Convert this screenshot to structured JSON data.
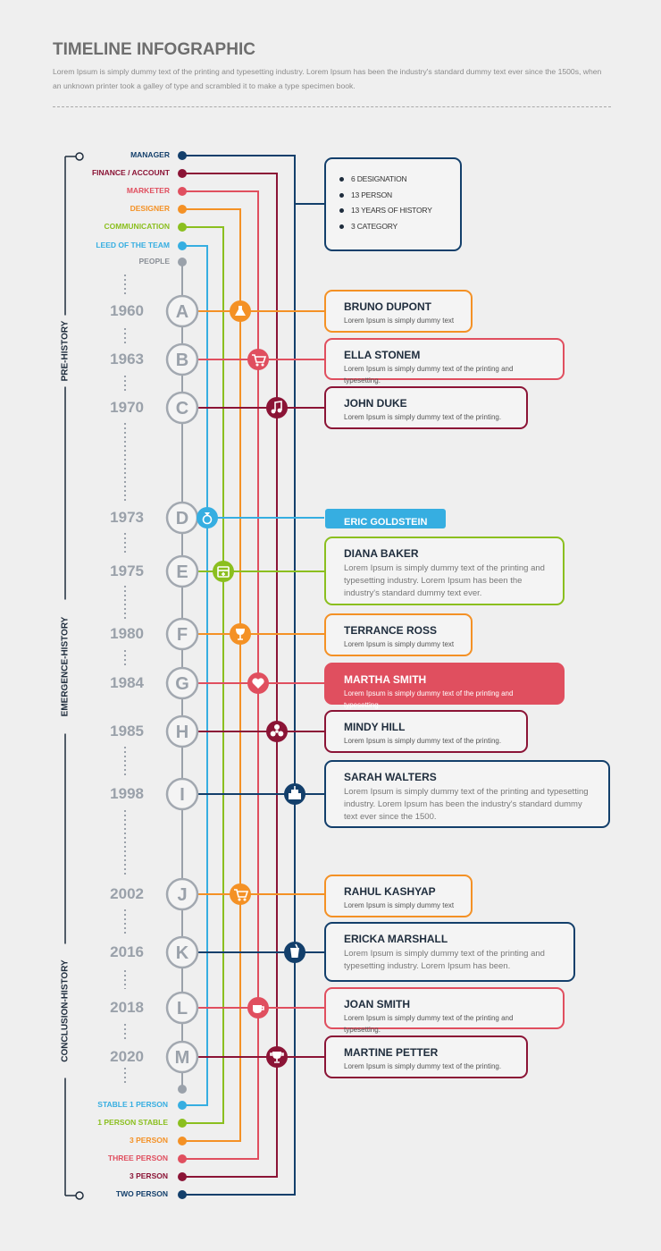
{
  "header": {
    "title": "TIMELINE INFOGRAPHIC",
    "description": "Lorem Ipsum is simply dummy text of the printing and typesetting industry. Lorem Ipsum has been the industry's standard dummy text ever since the 1500s, when an unknown printer took a galley of type and scrambled it to make a type specimen book."
  },
  "colors": {
    "navy": "#133f6b",
    "maroon": "#8b1436",
    "red": "#e04f5f",
    "orange": "#f49125",
    "green": "#8bbf1f",
    "blue": "#36aee1",
    "gray": "#9aa1aa"
  },
  "top_labels": [
    "MANAGER",
    "FINANCE / ACCOUNT",
    "MARKETER",
    "DESIGNER",
    "COMMUNICATION",
    "LEED OF THE TEAM",
    "PEOPLE"
  ],
  "bottom_labels": [
    "STABLE 1 PERSON",
    "1 PERSON STABLE",
    "3 PERSON",
    "THREE PERSON",
    "3 PERSON",
    "TWO PERSON"
  ],
  "summary": [
    "6 DESIGNATION",
    "13 PERSON",
    "13 YEARS OF HISTORY",
    "3 CATEGORY"
  ],
  "eras": [
    "PRE-HISTORY",
    "EMERGENCE-HISTORY",
    "CONCLUSION-HISTORY"
  ],
  "events": [
    {
      "letter": "A",
      "year": "1960",
      "name": "BRUNO DUPONT",
      "text": "Lorem Ipsum is simply dummy text",
      "color": "orange",
      "icon": "flask-icon"
    },
    {
      "letter": "B",
      "year": "1963",
      "name": "ELLA STONEM",
      "text": "Lorem Ipsum is simply dummy text of the printing and typesetting.",
      "color": "red",
      "icon": "cart-icon"
    },
    {
      "letter": "C",
      "year": "1970",
      "name": "JOHN DUKE",
      "text": "Lorem Ipsum is simply dummy text of the printing.",
      "color": "maroon",
      "icon": "music-note-icon"
    },
    {
      "letter": "D",
      "year": "1973",
      "name": "ERIC GOLDSTEIN",
      "text": "",
      "color": "blue",
      "icon": "ring-icon"
    },
    {
      "letter": "E",
      "year": "1975",
      "name": "DIANA BAKER",
      "text": "Lorem Ipsum is simply dummy text of the printing and typesetting industry. Lorem Ipsum has been the industry's standard dummy text ever.",
      "color": "green",
      "icon": "calendar-icon"
    },
    {
      "letter": "F",
      "year": "1980",
      "name": "TERRANCE ROSS",
      "text": "Lorem Ipsum is simply dummy text",
      "color": "orange",
      "icon": "wine-glass-icon"
    },
    {
      "letter": "G",
      "year": "1984",
      "name": "MARTHA SMITH",
      "text": "Lorem Ipsum is simply dummy text of the printing and typesetting.",
      "color": "red",
      "icon": "heart-icon"
    },
    {
      "letter": "H",
      "year": "1985",
      "name": "MINDY HILL",
      "text": "Lorem Ipsum is simply dummy text of the printing.",
      "color": "maroon",
      "icon": "radiation-icon"
    },
    {
      "letter": "I",
      "year": "1998",
      "name": "SARAH WALTERS",
      "text": "Lorem Ipsum is simply dummy text of the printing and typesetting industry. Lorem Ipsum has been the industry's standard dummy text ever since the 1500.",
      "color": "navy",
      "icon": "cake-icon"
    },
    {
      "letter": "J",
      "year": "2002",
      "name": "RAHUL KASHYAP",
      "text": "Lorem Ipsum is simply dummy text",
      "color": "orange",
      "icon": "cart-icon"
    },
    {
      "letter": "K",
      "year": "2016",
      "name": "ERICKA MARSHALL",
      "text": "Lorem Ipsum is simply dummy text of the printing and typesetting industry. Lorem Ipsum has been.",
      "color": "navy",
      "icon": "cup-icon"
    },
    {
      "letter": "L",
      "year": "2018",
      "name": "JOAN SMITH",
      "text": "Lorem Ipsum is simply dummy text of the printing and typesetting.",
      "color": "red",
      "icon": "coffee-icon"
    },
    {
      "letter": "M",
      "year": "2020",
      "name": "MARTINE PETTER",
      "text": "Lorem Ipsum is simply dummy text of the printing.",
      "color": "maroon",
      "icon": "trophy-icon"
    }
  ]
}
